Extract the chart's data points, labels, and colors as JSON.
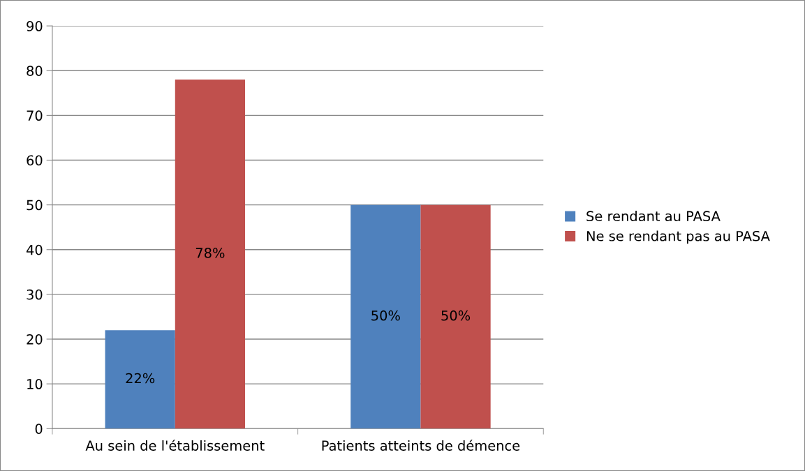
{
  "chart_data": {
    "type": "bar",
    "categories": [
      "Au sein de l'établissement",
      "Patients atteints de démence"
    ],
    "series": [
      {
        "name": "Se rendant au PASA",
        "color": "#4f81bd",
        "values": [
          22,
          50
        ],
        "value_labels": [
          "22%",
          "50%"
        ]
      },
      {
        "name": "Ne se rendant pas au PASA",
        "color": "#c0504d",
        "values": [
          78,
          50
        ],
        "value_labels": [
          "78%",
          "50%"
        ]
      }
    ],
    "ylim": [
      0,
      90
    ],
    "yticks": [
      0,
      10,
      20,
      30,
      40,
      50,
      60,
      70,
      80,
      90
    ],
    "grid": "y",
    "legend": "right"
  }
}
